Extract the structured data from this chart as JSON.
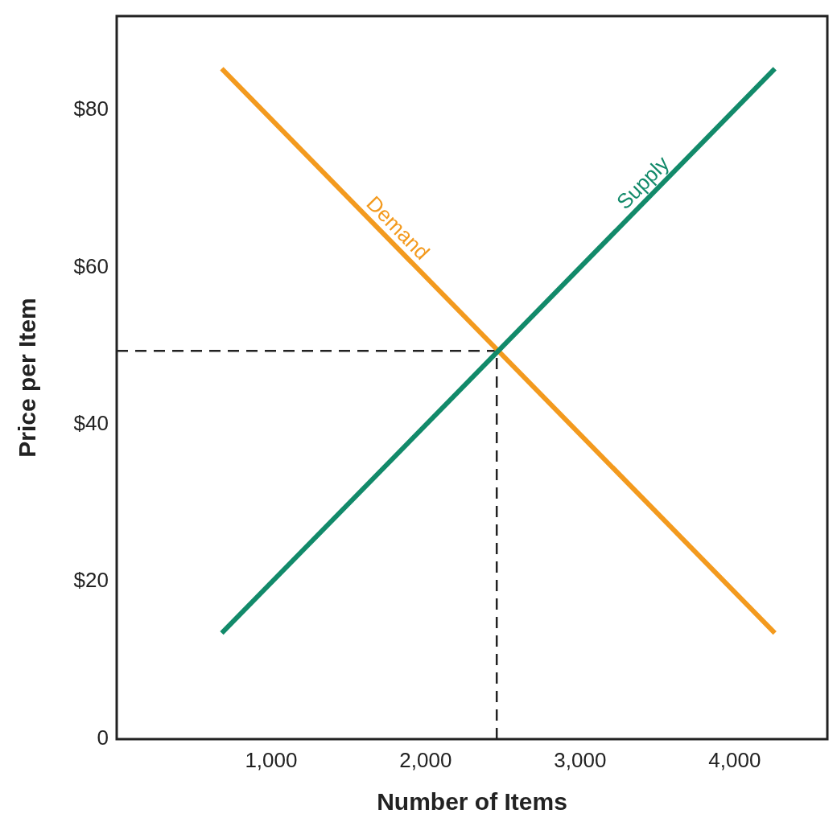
{
  "chart_data": {
    "type": "line",
    "xlabel": "Number of Items",
    "ylabel": "Price per Item",
    "xlim": [
      0,
      4600
    ],
    "ylim": [
      0,
      92
    ],
    "xticks": [
      {
        "value": 1000,
        "label": "1,000"
      },
      {
        "value": 2000,
        "label": "2,000"
      },
      {
        "value": 3000,
        "label": "3,000"
      },
      {
        "value": 4000,
        "label": "4,000"
      }
    ],
    "yticks": [
      0,
      {
        "value": 20,
        "label": "$20"
      },
      {
        "value": 40,
        "label": "$40"
      },
      {
        "value": 60,
        "label": "$60"
      },
      {
        "value": 80,
        "label": "$80"
      }
    ],
    "x": [
      680,
      4260
    ],
    "series": [
      {
        "name": "Demand",
        "color": "#f39a1e",
        "values": [
          85.3,
          13.5
        ]
      },
      {
        "name": "Supply",
        "color": "#128a6a",
        "values": [
          13.5,
          85.3
        ]
      }
    ],
    "ref_lines": [
      {
        "axis": "x",
        "value": 2460,
        "color": "#222222",
        "line_style": "dashed"
      },
      {
        "axis": "y",
        "value": 49.4,
        "color": "#222222",
        "line_style": "dashed"
      }
    ],
    "grid": false,
    "marker": "none",
    "line_style": "solid"
  }
}
